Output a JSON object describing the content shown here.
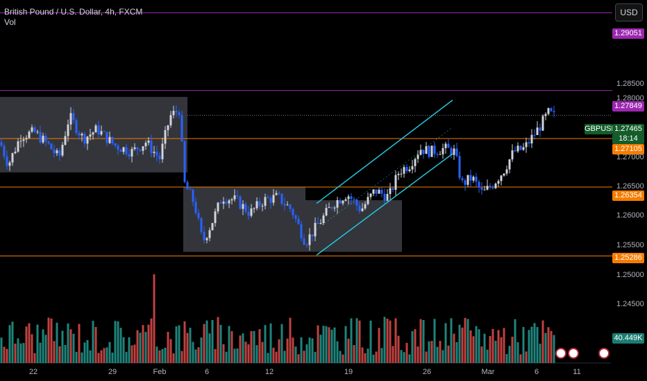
{
  "header": {
    "title": "British Pound / U.S. Dollar, 4h, FXCM",
    "indicator": "Vol"
  },
  "currency_button": "USD",
  "chart_data": {
    "type": "candlestick",
    "symbol": "GBPUSD",
    "ylim": [
      1.2482,
      1.2925
    ],
    "y_ticks": [
      "1.28500",
      "1.28000",
      "1.27000",
      "1.26500",
      "1.26000",
      "1.25500",
      "1.25000",
      "1.24500"
    ],
    "x_ticks": [
      "22",
      "29",
      "Feb",
      "6",
      "12",
      "19",
      "26",
      "Mar",
      "6",
      "11"
    ],
    "last_price": {
      "value": "1.27465",
      "countdown": "18:14"
    },
    "volume_label": "40.449K",
    "horizontal_levels": [
      {
        "value": "1.29051",
        "color": "#9c27b0"
      },
      {
        "value": "1.27849",
        "color": "#9c27b0"
      },
      {
        "value": "1.27105",
        "color": "#f57c00"
      },
      {
        "value": "1.26354",
        "color": "#f57c00"
      },
      {
        "value": "1.25286",
        "color": "#f57c00"
      }
    ],
    "colors": {
      "up": "#d1d4dc",
      "down": "#2962ff",
      "channel": "#26c6da",
      "vol_up": "#26a69a",
      "vol_down": "#ef5350"
    }
  }
}
